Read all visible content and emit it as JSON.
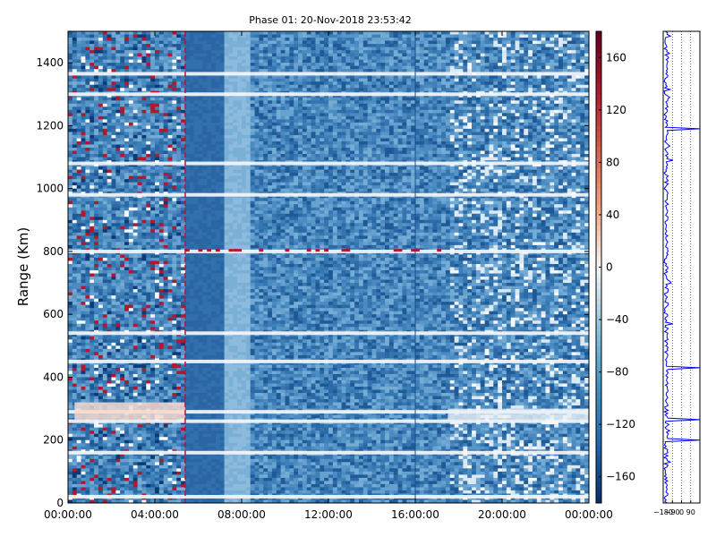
{
  "chart_data": [
    {
      "type": "heatmap",
      "title": "Phase 01: 20-Nov-2018 23:53:42",
      "xlabel": "",
      "ylabel": "Range (Km)",
      "x_ticks": [
        "00:00:00",
        "04:00:00",
        "08:00:00",
        "12:00:00",
        "16:00:00",
        "20:00:00",
        "00:00:00"
      ],
      "x_tick_hours": [
        0,
        4,
        8,
        12,
        16,
        20,
        24
      ],
      "xlim_hours": [
        0,
        24
      ],
      "y_ticks": [
        0,
        200,
        400,
        600,
        800,
        1000,
        1200,
        1400
      ],
      "ylim": [
        0,
        1500
      ],
      "colorbar": {
        "ticks": [
          160,
          120,
          80,
          40,
          0,
          -40,
          -80,
          -120,
          -160
        ],
        "range": [
          -180,
          180
        ],
        "colormap": "RdBu_r",
        "colors": [
          "#08306b",
          "#2166ac",
          "#4393c3",
          "#92c5de",
          "#f7f7f7",
          "#f4a582",
          "#d6604d",
          "#b2182b",
          "#67001f"
        ]
      },
      "white_band_ranges_km": [
        20,
        160,
        260,
        290,
        450,
        540,
        800,
        980,
        1080,
        1300,
        1365
      ],
      "red_dashed_line_hour": 5.4,
      "dark_vertical_line_hour": 16.0
    },
    {
      "type": "line",
      "xlim": [
        -180,
        180
      ],
      "x_ticks_labels": [
        "-180",
        "-90",
        "0",
        "90"
      ],
      "x_ticks": [
        -180,
        -90,
        0,
        90
      ],
      "ylim": [
        0,
        1500
      ],
      "line_color": "#0000ff",
      "spikes_km": [
        1190,
        430,
        265,
        200
      ],
      "baseline_value": -150
    }
  ]
}
